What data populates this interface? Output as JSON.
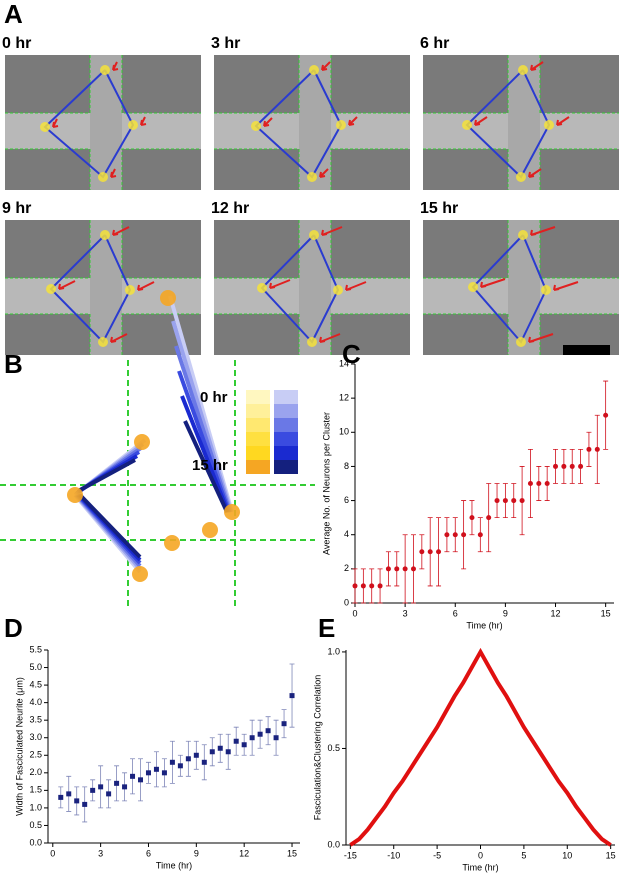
{
  "panel_a": {
    "label": "A",
    "frames": [
      "0 hr",
      "3 hr",
      "6 hr",
      "9 hr",
      "12 hr",
      "15 hr"
    ]
  },
  "panel_b": {
    "label": "B",
    "legend_start": "0 hr",
    "legend_end": "15 hr"
  },
  "chart_data": [
    {
      "type": "scatter",
      "panel_label": "C",
      "x_label": "Time (hr)",
      "y_label": "Average No. of Neurons per Cluster",
      "color": "#d0101c",
      "x": [
        0,
        0.5,
        1,
        1.5,
        2,
        2.5,
        3,
        3.5,
        4,
        4.5,
        5,
        5.5,
        6,
        6.5,
        7,
        7.5,
        8,
        8.5,
        9,
        9.5,
        10,
        10.5,
        11,
        11.5,
        12,
        12.5,
        13,
        13.5,
        14,
        14.5,
        15
      ],
      "values": [
        1,
        1,
        1,
        1,
        2,
        2,
        2,
        2,
        3,
        3,
        3,
        4,
        4,
        4,
        5,
        4,
        5,
        6,
        6,
        6,
        6,
        7,
        7,
        7,
        8,
        8,
        8,
        8,
        9,
        9,
        11
      ],
      "errors": [
        1,
        1,
        1,
        1,
        1,
        1,
        2,
        2,
        1,
        2,
        2,
        1,
        1,
        2,
        1,
        1,
        2,
        1,
        1,
        1,
        2,
        2,
        1,
        1,
        1,
        1,
        1,
        1,
        1,
        2,
        2
      ],
      "xlim": [
        0,
        15.5
      ],
      "ylim": [
        0,
        14
      ],
      "xticks": [
        0,
        3,
        6,
        9,
        12,
        15
      ],
      "yticks": [
        0,
        2,
        4,
        6,
        8,
        10,
        12,
        14
      ]
    },
    {
      "type": "scatter",
      "panel_label": "D",
      "x_label": "Time (hr)",
      "y_label": "Width of Fasciculated Neurite (μm)",
      "color": "#1a237e",
      "error_color": "#7f86b8",
      "marker": "square",
      "x": [
        0.5,
        1,
        1.5,
        2,
        2.5,
        3,
        3.5,
        4,
        4.5,
        5,
        5.5,
        6,
        6.5,
        7,
        7.5,
        8,
        8.5,
        9,
        9.5,
        10,
        10.5,
        11,
        11.5,
        12,
        12.5,
        13,
        13.5,
        14,
        14.5,
        15
      ],
      "values": [
        1.3,
        1.4,
        1.2,
        1.1,
        1.5,
        1.6,
        1.4,
        1.7,
        1.6,
        1.9,
        1.8,
        2.0,
        2.1,
        2.0,
        2.3,
        2.2,
        2.4,
        2.5,
        2.3,
        2.6,
        2.7,
        2.6,
        2.9,
        2.8,
        3.0,
        3.1,
        3.2,
        3.0,
        3.4,
        4.2
      ],
      "errors": [
        0.3,
        0.5,
        0.4,
        0.5,
        0.3,
        0.6,
        0.4,
        0.5,
        0.4,
        0.5,
        0.6,
        0.3,
        0.5,
        0.4,
        0.6,
        0.3,
        0.5,
        0.4,
        0.5,
        0.4,
        0.4,
        0.5,
        0.4,
        0.3,
        0.5,
        0.4,
        0.4,
        0.5,
        0.4,
        0.9
      ],
      "xlim": [
        -0.3,
        15.5
      ],
      "ylim": [
        0,
        5.5
      ],
      "xticks": [
        0,
        3,
        6,
        9,
        12,
        15
      ],
      "yticks": [
        {
          "value": 0,
          "label": "0.0"
        },
        0.5,
        {
          "value": 1,
          "label": "1.0"
        },
        1.5,
        {
          "value": 2,
          "label": "2.0"
        },
        2.5,
        {
          "value": 3,
          "label": "3.0"
        },
        3.5,
        {
          "value": 4,
          "label": "4.0"
        },
        4.5,
        {
          "value": 5,
          "label": "5.0"
        },
        5.5
      ]
    },
    {
      "type": "line",
      "panel_label": "E",
      "x_label": "Time (hr)",
      "y_label": "Fasciculation&Clustering Correlation",
      "color": "#e01010",
      "x": [
        -15,
        -14,
        -13,
        -12,
        -11,
        -10,
        -9,
        -8,
        -7,
        -6,
        -5,
        -4,
        -3,
        -2,
        -1,
        0,
        1,
        2,
        3,
        4,
        5,
        6,
        7,
        8,
        9,
        10,
        11,
        12,
        13,
        14,
        15
      ],
      "values": [
        0,
        0.03,
        0.08,
        0.14,
        0.2,
        0.27,
        0.33,
        0.4,
        0.47,
        0.54,
        0.61,
        0.69,
        0.77,
        0.84,
        0.92,
        1,
        0.92,
        0.84,
        0.77,
        0.69,
        0.61,
        0.54,
        0.47,
        0.4,
        0.33,
        0.27,
        0.2,
        0.14,
        0.08,
        0.03,
        0
      ],
      "xlim": [
        -15.5,
        15.5
      ],
      "ylim": [
        0,
        1.01
      ],
      "xticks": [
        -15,
        -10,
        -5,
        0,
        5,
        10,
        15
      ],
      "yticks": [
        {
          "value": 0,
          "label": "0.0"
        },
        0.5,
        {
          "value": 1,
          "label": "1.0"
        }
      ]
    }
  ]
}
